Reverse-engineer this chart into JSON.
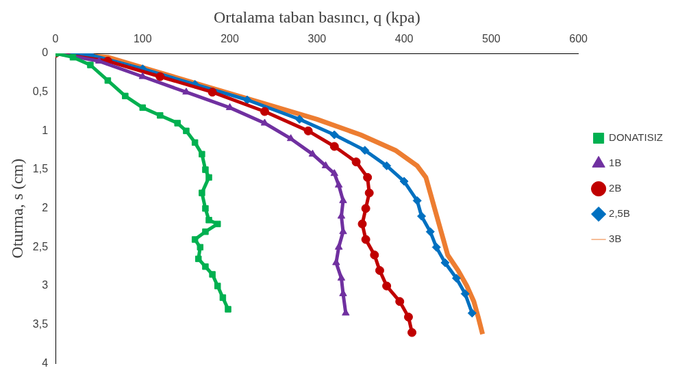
{
  "chart_data": {
    "type": "line",
    "xlabel": "Ortalama taban basıncı, q (kpa)",
    "ylabel": "Oturma, s (cm)",
    "xlim": [
      0,
      600
    ],
    "xticks": [
      0,
      100,
      200,
      300,
      400,
      500,
      600
    ],
    "ylim": [
      4,
      0
    ],
    "yticks": [
      0,
      {
        "value": 0.5,
        "label": "0,5"
      },
      1,
      {
        "value": 1.5,
        "label": "1,5"
      },
      2,
      {
        "value": 2.5,
        "label": "2,5"
      },
      3,
      {
        "value": 3.5,
        "label": "3,5"
      },
      4
    ],
    "grid": false,
    "legend": "right",
    "series": [
      {
        "name": "DONATISIZ",
        "color": "#00b050",
        "marker": "square",
        "x": [
          0,
          20,
          40,
          60,
          80,
          100,
          120,
          140,
          150,
          160,
          168,
          172,
          176,
          168,
          172,
          176,
          186,
          172,
          160,
          166,
          164,
          172,
          180,
          186,
          192,
          198
        ],
        "values": [
          0,
          0.05,
          0.15,
          0.35,
          0.55,
          0.7,
          0.8,
          0.9,
          1.0,
          1.15,
          1.3,
          1.5,
          1.6,
          1.8,
          2.0,
          2.15,
          2.2,
          2.3,
          2.4,
          2.5,
          2.65,
          2.75,
          2.85,
          3.0,
          3.15,
          3.3
        ]
      },
      {
        "name": "1B",
        "color": "#7030a0",
        "marker": "triangle",
        "x": [
          0,
          50,
          100,
          150,
          200,
          240,
          270,
          295,
          310,
          320,
          325,
          330,
          328,
          330,
          325,
          322,
          328,
          330,
          333
        ],
        "values": [
          0,
          0.1,
          0.3,
          0.5,
          0.7,
          0.9,
          1.1,
          1.3,
          1.45,
          1.55,
          1.7,
          1.9,
          2.1,
          2.3,
          2.5,
          2.7,
          2.9,
          3.1,
          3.35
        ]
      },
      {
        "name": "2B",
        "color": "#c00000",
        "marker": "circle",
        "x": [
          0,
          60,
          120,
          180,
          240,
          290,
          320,
          345,
          358,
          360,
          356,
          352,
          356,
          366,
          372,
          380,
          395,
          405,
          409
        ],
        "values": [
          0,
          0.1,
          0.3,
          0.5,
          0.75,
          1.0,
          1.2,
          1.4,
          1.6,
          1.8,
          2.0,
          2.2,
          2.4,
          2.6,
          2.8,
          3.0,
          3.2,
          3.4,
          3.6
        ]
      },
      {
        "name": "2,5B",
        "color": "#0070c0",
        "marker": "diamond",
        "x": [
          0,
          40,
          100,
          160,
          220,
          280,
          320,
          355,
          380,
          400,
          415,
          420,
          430,
          437,
          447,
          460,
          470,
          478
        ],
        "values": [
          0,
          0.02,
          0.2,
          0.4,
          0.6,
          0.85,
          1.05,
          1.25,
          1.45,
          1.65,
          1.9,
          2.1,
          2.3,
          2.5,
          2.7,
          2.9,
          3.1,
          3.35
        ]
      },
      {
        "name": "3B",
        "color": "#ed7d31",
        "marker": "none",
        "x": [
          0,
          60,
          120,
          180,
          240,
          300,
          350,
          390,
          415,
          425,
          430,
          435,
          440,
          445,
          450,
          462,
          472,
          480,
          485,
          490
        ],
        "values": [
          0,
          0.05,
          0.25,
          0.45,
          0.65,
          0.85,
          1.05,
          1.25,
          1.45,
          1.6,
          1.8,
          2.0,
          2.2,
          2.4,
          2.6,
          2.8,
          3.0,
          3.2,
          3.4,
          3.62
        ]
      }
    ]
  }
}
